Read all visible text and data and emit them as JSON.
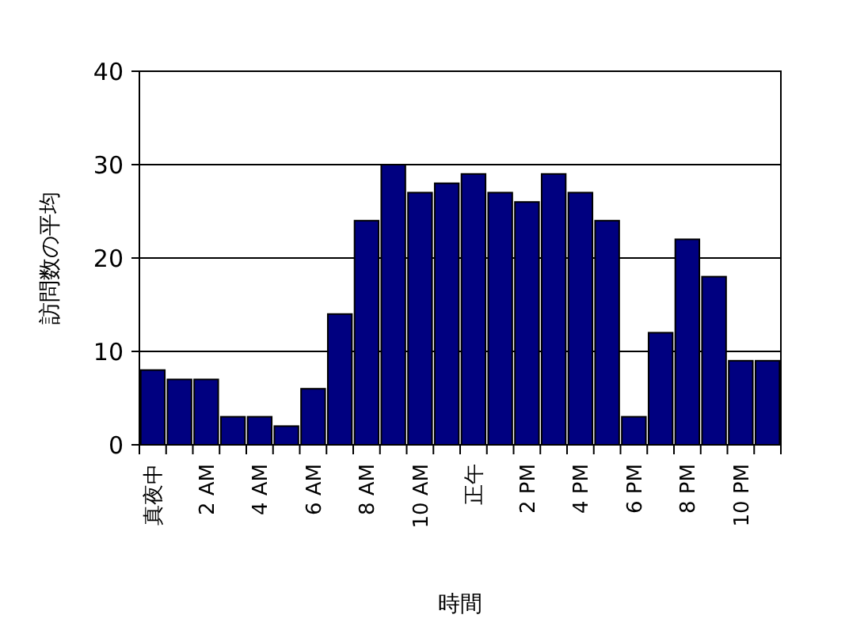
{
  "chart_data": {
    "type": "bar",
    "xlabel": "時間",
    "ylabel": "訪問数の平均",
    "categories": [
      "真夜中",
      null,
      "2 AM",
      null,
      "4 AM",
      null,
      "6 AM",
      null,
      "8 AM",
      null,
      "10 AM",
      null,
      "正午",
      null,
      "2 PM",
      null,
      "4 PM",
      null,
      "6 PM",
      null,
      "8 PM",
      null,
      "10 PM",
      null
    ],
    "values": [
      8,
      7,
      7,
      3,
      3,
      2,
      6,
      14,
      24,
      30,
      27,
      28,
      29,
      27,
      26,
      29,
      27,
      24,
      3,
      12,
      22,
      18,
      9,
      9
    ],
    "color": "#000080",
    "ylim": [
      0,
      40
    ],
    "yticks": [
      0,
      10,
      20,
      30,
      40
    ],
    "grid": "y"
  }
}
